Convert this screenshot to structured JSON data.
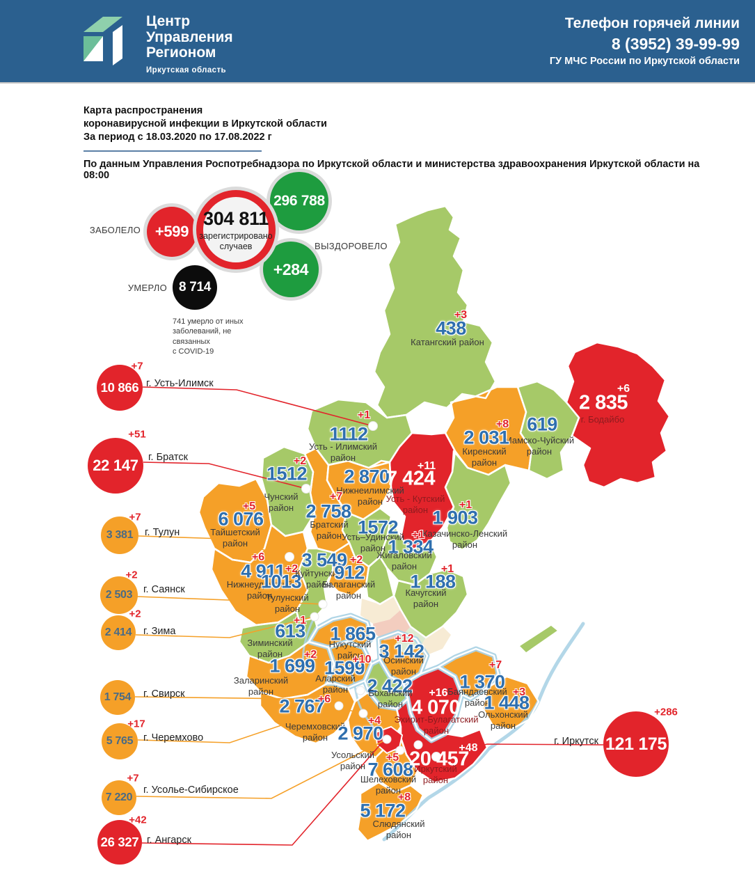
{
  "header": {
    "logo_title_lines": [
      "Центр",
      "Управления",
      "Регионом"
    ],
    "logo_subtitle": "Иркутская область",
    "hotline_label": "Телефон горячей линии",
    "hotline_phone": "8 (3952) 39-99-99",
    "hotline_org": "ГУ МЧС России по Иркутской области"
  },
  "title": {
    "line1": "Карта распространения",
    "line2": "коронавирусной инфекции в Иркутской области",
    "line3": "За период с 18.03.2020 по 17.08.2022 г",
    "source": "По данным Управления Роспотребнадзора по Иркутской области и министерства здравоохранения Иркутской области на 08:00"
  },
  "stats": {
    "sick_label": "ЗАБОЛЕЛО",
    "sick_delta": "+599",
    "registered_value": "304 811",
    "registered_label": "зарегистрировано\nслучаев",
    "recovered_value": "296 788",
    "recovered_delta": "+284",
    "recovered_label": "ВЫЗДОРОВЕЛО",
    "died_label": "УМЕРЛО",
    "died_value": "8 714",
    "footnote": "741 умерло от иных\nзаболеваний, не связанных\nс COVID-19"
  },
  "palette": {
    "header_blue": "#2b608f",
    "green": "#a6c968",
    "orange": "#f5a028",
    "red": "#e2242b",
    "delta_red": "#e2242b",
    "blue_value": "#2f6fae",
    "circle_green": "#1e9c3f",
    "light_blue": "#abd3e5",
    "pale_cream": "#f7ebd4",
    "pale_pink": "#f3cdbf",
    "pale_green": "#deebd3",
    "name_dark": "#3a3a3a",
    "name_on_red": "#8e1b1f",
    "orange_circle_text": "#4a6b85"
  },
  "map": {
    "regions": [
      {
        "id": "katangsky",
        "name": "Катангский район",
        "value": "438",
        "delta": "+3",
        "level": "green",
        "v": [
          648,
          472
        ],
        "d": [
          662,
          453
        ],
        "n": [
          643,
          492
        ]
      },
      {
        "id": "bodaibo",
        "name": "г. Бодайбо",
        "value": "2 835",
        "delta": "+6",
        "level": "red",
        "v": [
          867,
          579
        ],
        "d": [
          896,
          559
        ],
        "n": [
          866,
          603
        ]
      },
      {
        "id": "mamsko",
        "name": "Мамско-Чуйский\nрайон",
        "value": "619",
        "delta": null,
        "level": "green",
        "v": [
          779,
          610
        ],
        "n": [
          775,
          641
        ]
      },
      {
        "id": "kirensky",
        "name": "Киренский\nрайон",
        "value": "2 031",
        "delta": "+8",
        "level": "orange",
        "v": [
          699,
          629
        ],
        "d": [
          722,
          610
        ],
        "n": [
          696,
          657
        ]
      },
      {
        "id": "ustilimsky",
        "name": "Усть - Илимский\nрайон",
        "value": "1112",
        "delta": "+1",
        "level": "green",
        "v": [
          501,
          624
        ],
        "d": [
          523,
          597
        ],
        "n": [
          493,
          650
        ]
      },
      {
        "id": "nizhneilimsky",
        "name": "Нижнеилимский\nрайон",
        "value": "2 870",
        "delta": null,
        "level": "orange",
        "v": [
          527,
          685
        ],
        "n": [
          532,
          713
        ]
      },
      {
        "id": "ustkutsky",
        "name": "Усть - Кутский\nрайон",
        "value": "7 424",
        "delta": "+11",
        "level": "red",
        "v": [
          590,
          688
        ],
        "d": [
          613,
          670
        ],
        "n": [
          597,
          725
        ]
      },
      {
        "id": "chunsky",
        "name": "Чунский\nрайон",
        "value": "1512",
        "delta": "+2",
        "level": "green",
        "v": [
          412,
          681
        ],
        "d": [
          431,
          663
        ],
        "n": [
          404,
          722
        ]
      },
      {
        "id": "bratsky",
        "name": "Братский\nрайон",
        "value": "2 758",
        "delta": "+7",
        "level": "orange",
        "v": [
          472,
          735
        ],
        "d": [
          483,
          714
        ],
        "n": [
          473,
          762
        ]
      },
      {
        "id": "kazachinsko",
        "name": "Казачинско-Ленский\nрайон",
        "value": "1 903",
        "delta": "+1",
        "level": "green",
        "v": [
          654,
          744
        ],
        "d": [
          669,
          726
        ],
        "n": [
          668,
          775
        ]
      },
      {
        "id": "ustudinsky",
        "name": "Усть–Удинский\nрайон",
        "value": "1572",
        "delta": null,
        "level": "green",
        "v": [
          543,
          758
        ],
        "n": [
          536,
          780
        ]
      },
      {
        "id": "zhigalovsky",
        "name": "Жигаловский\nрайон",
        "value": "1 334",
        "delta": "+1",
        "level": "green",
        "v": [
          590,
          786
        ],
        "d": [
          601,
          769
        ],
        "n": [
          581,
          806
        ]
      },
      {
        "id": "kachugsky",
        "name": "Качугский\nрайон",
        "value": "1 188",
        "delta": "+1",
        "level": "green",
        "v": [
          622,
          836
        ],
        "d": [
          643,
          818
        ],
        "n": [
          612,
          860
        ]
      },
      {
        "id": "taishetsky",
        "name": "Тайшетский\nрайон",
        "value": "6 076",
        "delta": "+5",
        "level": "orange",
        "v": [
          346,
          746
        ],
        "d": [
          358,
          728
        ],
        "n": [
          338,
          773
        ]
      },
      {
        "id": "nizhneudinsky",
        "name": "Нижнеудинский\nрайон",
        "value": "4 911",
        "delta": "+6",
        "level": "orange",
        "v": [
          378,
          821
        ],
        "d": [
          371,
          801
        ],
        "n": [
          373,
          848
        ]
      },
      {
        "id": "tulunsky",
        "name": "Тулунский\nрайон",
        "value": "1013",
        "delta": "+2",
        "level": "green",
        "v": [
          404,
          836
        ],
        "d": [
          419,
          818
        ],
        "n": [
          413,
          867
        ]
      },
      {
        "id": "kuytunsky",
        "name": "Куйтунский\nрайон",
        "value": "3 549",
        "delta": null,
        "level": "orange",
        "v": [
          466,
          805
        ],
        "n": [
          458,
          832
        ]
      },
      {
        "id": "balagansky",
        "name": "Балаганский\nрайон",
        "value": "912",
        "delta": "+2",
        "level": "green",
        "v": [
          502,
          823
        ],
        "d": [
          512,
          805
        ],
        "n": [
          501,
          848
        ]
      },
      {
        "id": "ziminsky",
        "name": "Зиминский\nрайон",
        "value": "613",
        "delta": "+1",
        "level": "green",
        "v": [
          417,
          907
        ],
        "d": [
          431,
          892
        ],
        "n": [
          388,
          932
        ]
      },
      {
        "id": "nukutsky",
        "name": "Нукутский\nрайон",
        "value": "1 865",
        "delta": null,
        "level": "orange",
        "v": [
          507,
          911
        ],
        "n": [
          503,
          934
        ]
      },
      {
        "id": "osinsky",
        "name": "Осинский\nрайон",
        "value": "3 142",
        "delta": "+12",
        "level": "orange",
        "v": [
          577,
          936
        ],
        "d": [
          581,
          918
        ],
        "n": [
          580,
          957
        ]
      },
      {
        "id": "zalarinsky",
        "name": "Заларинский\nрайон",
        "value": "1 699",
        "delta": "+2",
        "level": "orange",
        "v": [
          420,
          957
        ],
        "d": [
          446,
          941
        ],
        "n": [
          375,
          986
        ]
      },
      {
        "id": "alarsky",
        "name": "Аларский\nрайон",
        "value": "1599",
        "delta": "+10",
        "level": "orange",
        "v": [
          495,
          960
        ],
        "d": [
          520,
          948
        ],
        "n": [
          482,
          983
        ]
      },
      {
        "id": "bokhansky",
        "name": "Боханский\nрайон",
        "value": "2 422",
        "delta": null,
        "level": "green",
        "v": [
          560,
          986
        ],
        "n": [
          561,
          1004
        ]
      },
      {
        "id": "ekhirit",
        "name": "Эхирит-Булагатский\nрайон",
        "value": "4 070",
        "delta": "+16",
        "level": "red",
        "v": [
          626,
          1017
        ],
        "d": [
          630,
          996
        ],
        "n": [
          627,
          1042
        ]
      },
      {
        "id": "bayandaevsky",
        "name": "Баяндаевский\nрайон",
        "value": "1 370",
        "delta": "+7",
        "level": "orange",
        "v": [
          693,
          980
        ],
        "d": [
          712,
          956
        ],
        "n": [
          686,
          1002
        ]
      },
      {
        "id": "olkhonsky",
        "name": "Ольхонский\nрайон",
        "value": "1 448",
        "delta": "+3",
        "level": "orange",
        "v": [
          728,
          1010
        ],
        "d": [
          746,
          995
        ],
        "n": [
          723,
          1035
        ]
      },
      {
        "id": "cheremkhovsky",
        "name": "Черемховский\nрайон",
        "value": "2 767",
        "delta": "+6",
        "level": "orange",
        "v": [
          434,
          1015
        ],
        "d": [
          466,
          1005
        ],
        "n": [
          453,
          1052
        ]
      },
      {
        "id": "usolsky",
        "name": "Усольский\nрайон",
        "value": "2 970",
        "delta": "+4",
        "level": "orange",
        "v": [
          518,
          1054
        ],
        "d": [
          538,
          1036
        ],
        "n": [
          507,
          1093
        ]
      },
      {
        "id": "shelekhovsky",
        "name": "Шелеховский\nрайон",
        "value": "7 608",
        "delta": "+5",
        "level": "orange",
        "v": [
          561,
          1106
        ],
        "d": [
          564,
          1089
        ],
        "n": [
          558,
          1128
        ]
      },
      {
        "id": "irkutsky",
        "name": "Иркутский\nрайон",
        "value": "20 457",
        "delta": "+48",
        "level": "red",
        "v": [
          631,
          1091
        ],
        "d": [
          673,
          1075
        ],
        "n": [
          626,
          1113
        ]
      },
      {
        "id": "slyudyansky",
        "name": "Слюдянский\nрайон",
        "value": "5 172",
        "delta": "+8",
        "level": "orange",
        "v": [
          550,
          1165
        ],
        "d": [
          581,
          1146
        ],
        "n": [
          573,
          1192
        ]
      }
    ],
    "cities": [
      {
        "id": "ust-ilimsk",
        "label": "г. Усть-Илимск",
        "value": "10 866",
        "delta": "+7",
        "level": "red",
        "c": [
          172,
          557
        ],
        "r": 33,
        "d": [
          197,
          526
        ],
        "l": [
          210,
          551
        ],
        "align": "left"
      },
      {
        "id": "bratsk",
        "label": "г. Братск",
        "value": "22 147",
        "delta": "+51",
        "level": "red",
        "c": [
          166,
          669
        ],
        "r": 40,
        "d": [
          197,
          624
        ],
        "l": [
          213,
          657
        ],
        "align": "left"
      },
      {
        "id": "tulun",
        "label": "г. Тулун",
        "value": "3 381",
        "delta": "+7",
        "level": "orange",
        "c": [
          172,
          769
        ],
        "r": 27,
        "d": [
          194,
          743
        ],
        "l": [
          208,
          765
        ],
        "align": "left"
      },
      {
        "id": "sayansk",
        "label": "г. Саянск",
        "value": "2 503",
        "delta": "+2",
        "level": "orange",
        "c": [
          171,
          855
        ],
        "r": 27,
        "d": [
          189,
          826
        ],
        "l": [
          206,
          847
        ],
        "align": "left"
      },
      {
        "id": "zima",
        "label": "г. Зима",
        "value": "2 414",
        "delta": "+2",
        "level": "orange",
        "c": [
          170,
          909
        ],
        "r": 25,
        "d": [
          194,
          882
        ],
        "l": [
          206,
          907
        ],
        "align": "left"
      },
      {
        "id": "svirsk",
        "label": "г. Свирск",
        "value": "1 754",
        "delta": null,
        "level": "orange",
        "c": [
          169,
          1002
        ],
        "r": 25,
        "l": [
          206,
          997
        ],
        "align": "left"
      },
      {
        "id": "cheremkhovo",
        "label": "г. Черемхово",
        "value": "5 765",
        "delta": "+17",
        "level": "orange",
        "c": [
          172,
          1065
        ],
        "r": 26,
        "d": [
          196,
          1040
        ],
        "l": [
          206,
          1060
        ],
        "align": "left"
      },
      {
        "id": "usolye",
        "label": "г. Усолье-Сибирское",
        "value": "7 220",
        "delta": "+7",
        "level": "orange",
        "c": [
          171,
          1146
        ],
        "r": 25,
        "d": [
          191,
          1118
        ],
        "l": [
          206,
          1135
        ],
        "align": "left"
      },
      {
        "id": "angarsk",
        "label": "г. Ангарск",
        "value": "26 327",
        "delta": "+42",
        "level": "red",
        "c": [
          172,
          1210
        ],
        "r": 32,
        "d": [
          198,
          1178
        ],
        "l": [
          211,
          1207
        ],
        "align": "left"
      },
      {
        "id": "irkutsk",
        "label": "г. Иркутск",
        "value": "121 175",
        "delta": "+286",
        "level": "red",
        "c": [
          914,
          1069
        ],
        "r": 47,
        "d": [
          957,
          1023
        ],
        "l": [
          860,
          1065
        ],
        "align": "right"
      }
    ]
  }
}
